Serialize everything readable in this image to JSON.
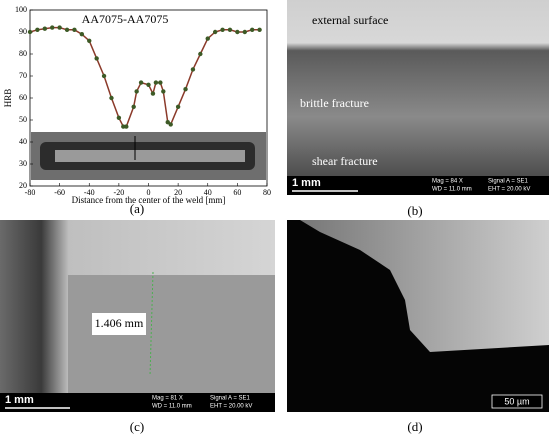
{
  "chart_data": {
    "type": "line",
    "title": "AA7075-AA7075",
    "x_label": "Distance from the center of the weld [mm]",
    "y_label": "HRB",
    "x": [
      -80,
      -75,
      -70,
      -65,
      -60,
      -55,
      -50,
      -45,
      -40,
      -35,
      -30,
      -25,
      -20,
      -17,
      -15,
      -10,
      -8,
      -5,
      0,
      3,
      5,
      8,
      10,
      13,
      15,
      20,
      25,
      30,
      35,
      40,
      45,
      50,
      55,
      60,
      65,
      70,
      75
    ],
    "series": [
      {
        "name": "HRB",
        "color": "#8b3a2a",
        "marker_color": "#3d5a26",
        "values": [
          90,
          91,
          91.5,
          92,
          92,
          91,
          91,
          89,
          86,
          78,
          70,
          60,
          51,
          47,
          47,
          56,
          63,
          67,
          66,
          62,
          67,
          67,
          63,
          49,
          48,
          56,
          64,
          73,
          80,
          87,
          90,
          91,
          91,
          90,
          90,
          91,
          91
        ]
      }
    ],
    "xlim": [
      -80,
      80
    ],
    "xticks": [
      -80,
      -60,
      -40,
      -20,
      0,
      20,
      40,
      60,
      80
    ],
    "ylim": [
      20,
      100
    ],
    "yticks": [
      20,
      30,
      40,
      50,
      60,
      70,
      80,
      90,
      100
    ]
  },
  "panels": [
    {
      "label": "(a)"
    },
    {
      "label": "(b)",
      "annotations": [
        "external surface",
        "brittle fracture",
        "shear fracture"
      ],
      "scale": "1 mm",
      "info": [
        "Mag =     84 X",
        "Signal A = SE1",
        "WD = 11.0 mm",
        "EHT = 20.00 kV"
      ]
    },
    {
      "label": "(c)",
      "annotations": [
        "1.406 mm"
      ],
      "scale": "1 mm",
      "info": [
        "Mag =     81 X",
        "Signal A = SE1",
        "WD = 11.0 mm",
        "EHT = 20.00 kV"
      ]
    },
    {
      "label": "(d)",
      "scale": "50 µm"
    }
  ]
}
